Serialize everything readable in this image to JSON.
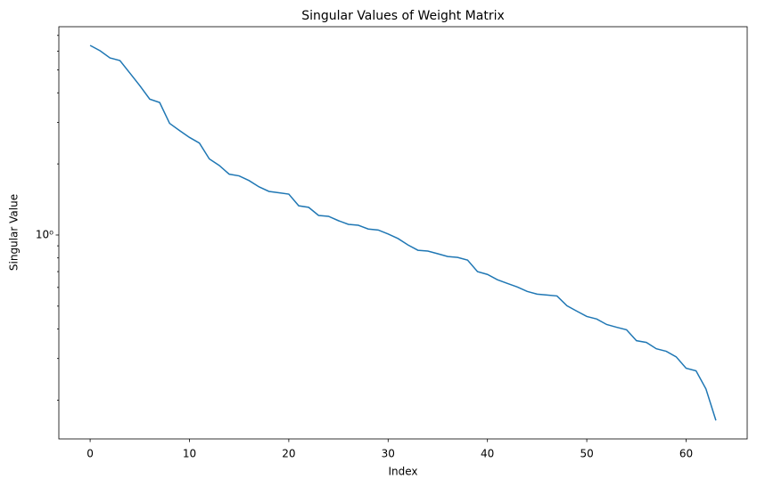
{
  "chart_data": {
    "type": "line",
    "title": "Singular Values of Weight Matrix",
    "x_label": "Index",
    "y_label": "Singular Value",
    "x": [
      0,
      1,
      2,
      3,
      4,
      5,
      6,
      7,
      8,
      9,
      10,
      11,
      12,
      13,
      14,
      15,
      16,
      17,
      18,
      19,
      20,
      21,
      22,
      23,
      24,
      25,
      26,
      27,
      28,
      29,
      30,
      31,
      32,
      33,
      34,
      35,
      36,
      37,
      38,
      39,
      40,
      41,
      42,
      43,
      44,
      45,
      46,
      47,
      48,
      49,
      50,
      51,
      52,
      53,
      54,
      55,
      56,
      57,
      58,
      59,
      60,
      61,
      62,
      63
    ],
    "series": [
      {
        "name": "Singular Value",
        "color": "#1f77b4",
        "values": [
          6.35,
          6.03,
          5.62,
          5.48,
          4.85,
          4.29,
          3.76,
          3.64,
          2.97,
          2.77,
          2.59,
          2.45,
          2.1,
          1.97,
          1.81,
          1.78,
          1.7,
          1.6,
          1.53,
          1.51,
          1.49,
          1.33,
          1.31,
          1.21,
          1.2,
          1.15,
          1.11,
          1.1,
          1.06,
          1.05,
          1.01,
          0.966,
          0.908,
          0.862,
          0.855,
          0.833,
          0.811,
          0.804,
          0.783,
          0.7,
          0.681,
          0.647,
          0.624,
          0.603,
          0.577,
          0.562,
          0.557,
          0.552,
          0.502,
          0.476,
          0.452,
          0.441,
          0.418,
          0.407,
          0.397,
          0.357,
          0.351,
          0.33,
          0.322,
          0.305,
          0.273,
          0.266,
          0.223,
          0.164
        ]
      }
    ],
    "xlim": [
      -3.15,
      66.15
    ],
    "xticks": [
      0,
      10,
      20,
      30,
      40,
      50,
      60
    ],
    "ylim": [
      0.137,
      7.62
    ],
    "y_scale": "log",
    "yticks": [
      {
        "value": 1,
        "label": "10⁰"
      }
    ],
    "yminorticks": [
      0.2,
      0.3,
      0.4,
      0.5,
      0.6,
      0.7,
      0.8,
      0.9,
      2,
      3,
      4,
      5,
      6,
      7
    ],
    "grid": false
  }
}
